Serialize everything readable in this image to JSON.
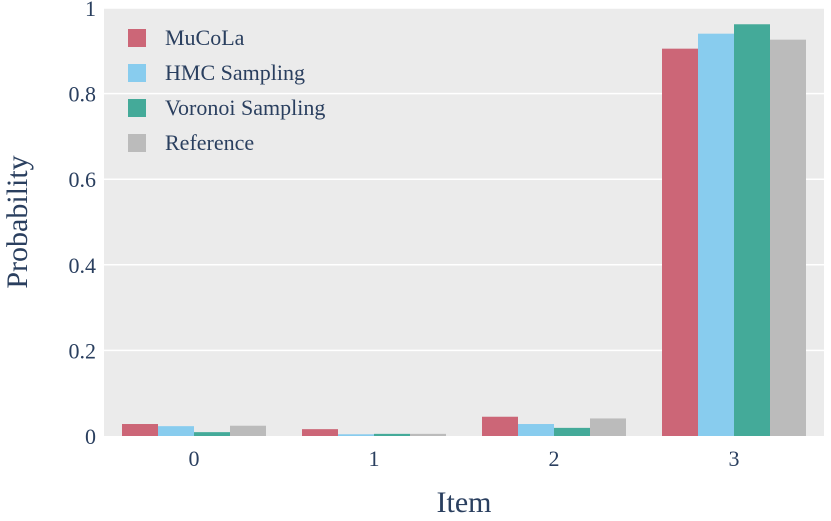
{
  "chart_data": {
    "type": "bar",
    "categories": [
      "0",
      "1",
      "2",
      "3"
    ],
    "series": [
      {
        "name": "MuCoLa",
        "color": "#cc6677",
        "values": [
          0.028,
          0.016,
          0.045,
          0.905
        ]
      },
      {
        "name": "HMC Sampling",
        "color": "#88ccee",
        "values": [
          0.023,
          0.004,
          0.028,
          0.94
        ]
      },
      {
        "name": "Voronoi Sampling",
        "color": "#44aa99",
        "values": [
          0.009,
          0.005,
          0.019,
          0.962
        ]
      },
      {
        "name": "Reference",
        "color": "#bbbbbb",
        "values": [
          0.024,
          0.005,
          0.041,
          0.926
        ]
      }
    ],
    "xlabel": "Item",
    "ylabel": "Probability",
    "ylim": [
      0,
      1
    ],
    "yticks": [
      0,
      0.2,
      0.4,
      0.6,
      0.8,
      1
    ],
    "ytick_labels": [
      "0",
      "0.2",
      "0.4",
      "0.6",
      "0.8",
      "1"
    ],
    "grid": true,
    "legend_position": "top-left",
    "plot_background": "#ebebeb",
    "gridline_color": "#ffffff"
  }
}
